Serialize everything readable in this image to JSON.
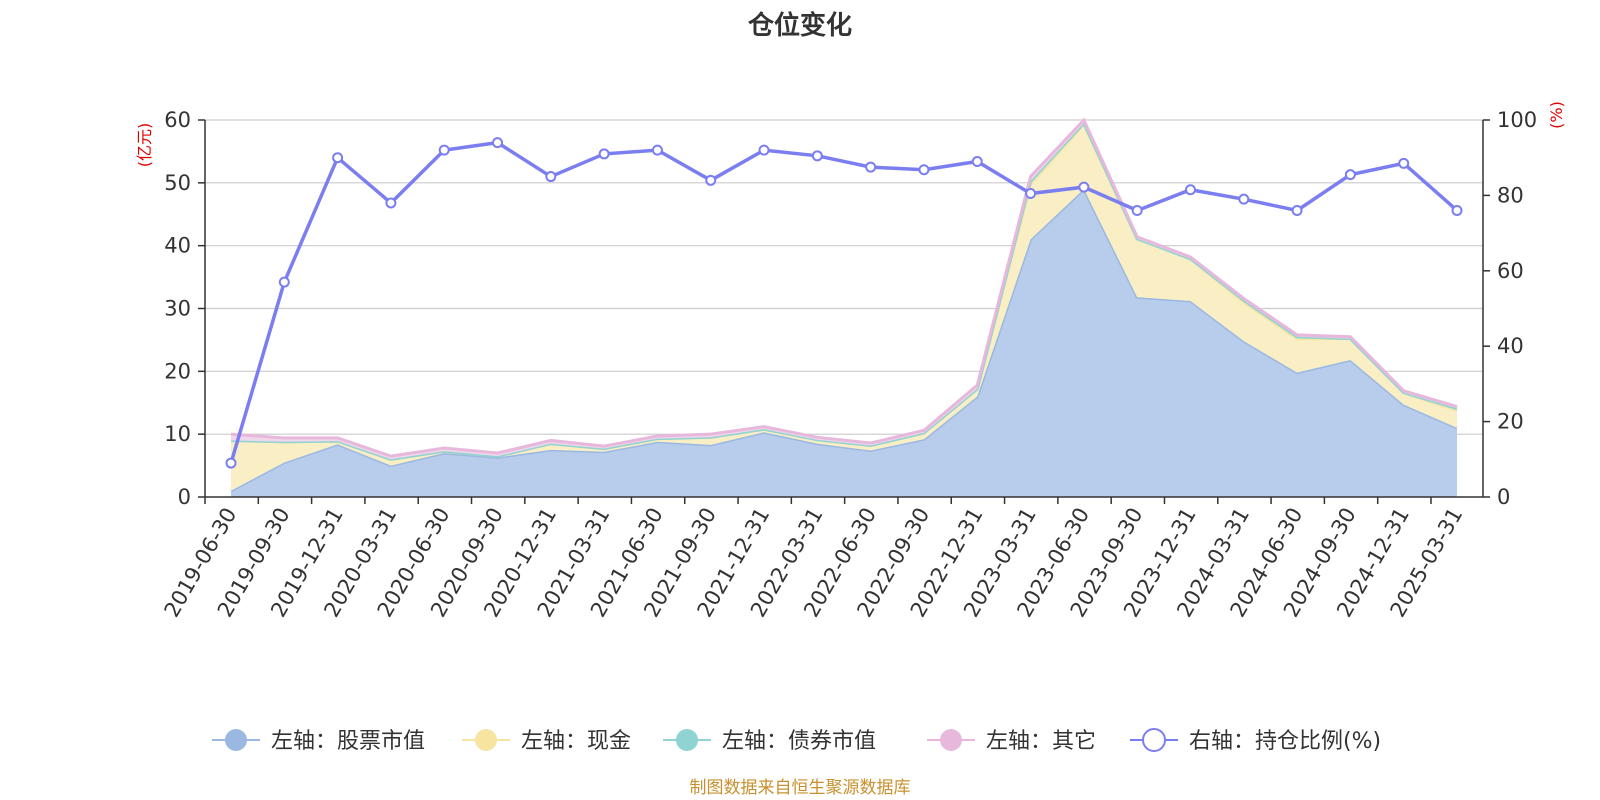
{
  "chart_data": {
    "type": "area",
    "title": "仓位变化",
    "left_axis_unit": "(亿元)",
    "right_axis_unit": "(%)",
    "left_ylim": [
      0,
      60
    ],
    "left_yticks": [
      0,
      10,
      20,
      30,
      40,
      50,
      60
    ],
    "right_ylim": [
      0,
      100
    ],
    "right_yticks": [
      0,
      20,
      40,
      60,
      80,
      100
    ],
    "categories": [
      "2019-06-30",
      "2019-09-30",
      "2019-12-31",
      "2020-03-31",
      "2020-06-30",
      "2020-09-30",
      "2020-12-31",
      "2021-03-31",
      "2021-06-30",
      "2021-09-30",
      "2021-12-31",
      "2022-03-31",
      "2022-06-30",
      "2022-09-30",
      "2022-12-31",
      "2023-03-31",
      "2023-06-30",
      "2023-09-30",
      "2023-12-31",
      "2024-03-31",
      "2024-06-30",
      "2024-09-30",
      "2024-12-31",
      "2025-03-31"
    ],
    "series": [
      {
        "name": "左轴：股票市值",
        "axis": "left",
        "stack": true,
        "color": "#9ab8e2",
        "fill": "#b7cdeb",
        "values": [
          1.0,
          5.5,
          8.4,
          5.0,
          7.0,
          6.3,
          7.5,
          7.2,
          8.8,
          8.3,
          10.3,
          8.5,
          7.4,
          9.2,
          16.0,
          41.0,
          49.0,
          31.8,
          31.2,
          24.8,
          19.8,
          21.8,
          14.7,
          11.0
        ]
      },
      {
        "name": "左轴：现金",
        "axis": "left",
        "stack": true,
        "color": "#f7e4a0",
        "fill": "#f9eec4",
        "values": [
          8.0,
          3.3,
          0.5,
          1.0,
          0.3,
          0.2,
          1.0,
          0.5,
          0.5,
          1.2,
          0.5,
          0.6,
          0.8,
          1.0,
          1.2,
          8.8,
          10.3,
          9.3,
          6.7,
          6.2,
          5.4,
          3.4,
          1.9,
          2.8
        ]
      },
      {
        "name": "左轴：债券市值",
        "axis": "left",
        "stack": true,
        "color": "#8fd3d3",
        "fill": "#b8e3e3",
        "values": [
          0.0,
          0.0,
          0.0,
          0.0,
          0.0,
          0.0,
          0.0,
          0.0,
          0.0,
          0.0,
          0.0,
          0.0,
          0.0,
          0.0,
          0.0,
          0.5,
          0.2,
          0.0,
          0.0,
          0.3,
          0.3,
          0.0,
          0.0,
          0.3
        ]
      },
      {
        "name": "左轴：其它",
        "axis": "left",
        "stack": true,
        "color": "#e7b8dc",
        "fill": "#f0d6ea",
        "values": [
          1.0,
          0.6,
          0.5,
          0.5,
          0.5,
          0.5,
          0.5,
          0.4,
          0.4,
          0.5,
          0.4,
          0.4,
          0.4,
          0.4,
          0.6,
          0.7,
          0.5,
          0.3,
          0.3,
          0.3,
          0.3,
          0.3,
          0.3,
          0.3
        ]
      },
      {
        "name": "右轴：持仓比例(%)",
        "axis": "right",
        "stack": false,
        "color": "#7b7ef0",
        "values": [
          9.0,
          57.0,
          90.0,
          78.0,
          92.0,
          94.0,
          85.0,
          91.0,
          92.0,
          84.0,
          92.0,
          90.5,
          87.5,
          86.8,
          89.0,
          80.5,
          82.2,
          76.0,
          81.5,
          79.0,
          76.0,
          85.5,
          88.5,
          76.0
        ]
      }
    ]
  },
  "source_text": "制图数据来自恒生聚源数据库"
}
